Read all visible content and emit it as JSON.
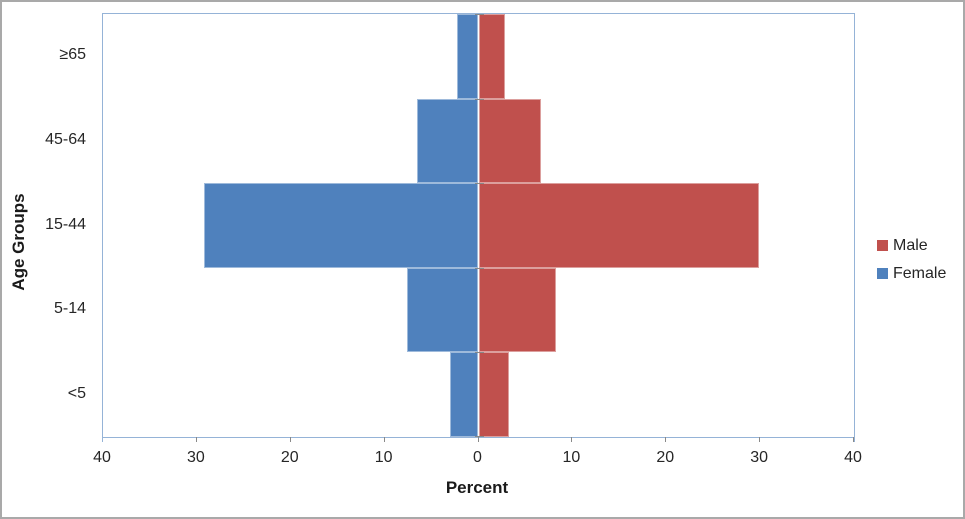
{
  "chart_data": {
    "type": "bar",
    "subtype": "population-pyramid",
    "orientation": "horizontal",
    "title": "",
    "xlabel": "Percent",
    "ylabel": "Age Groups",
    "categories": [
      "≥65",
      "45-64",
      "15-44",
      "5-14",
      "<5"
    ],
    "series": [
      {
        "name": "Male",
        "side": "right",
        "color": "#C0504D",
        "values": [
          2.8,
          6.7,
          29.9,
          8.3,
          3.2
        ]
      },
      {
        "name": "Female",
        "side": "left",
        "color": "#4F81BD",
        "values": [
          2.3,
          6.6,
          29.2,
          7.6,
          3.0
        ]
      }
    ],
    "xlim": [
      -40,
      40
    ],
    "x_tick_values": [
      -40,
      -30,
      -20,
      -10,
      0,
      10,
      20,
      30,
      40
    ],
    "x_tick_labels": [
      "40",
      "30",
      "20",
      "10",
      "0",
      "10",
      "20",
      "30",
      "40"
    ],
    "grid": false,
    "legend_position": "right",
    "bar_gap": 0,
    "colors": {
      "axis_line": "#95B3D7",
      "tick_mark": "#898989",
      "text": "#262626"
    }
  }
}
